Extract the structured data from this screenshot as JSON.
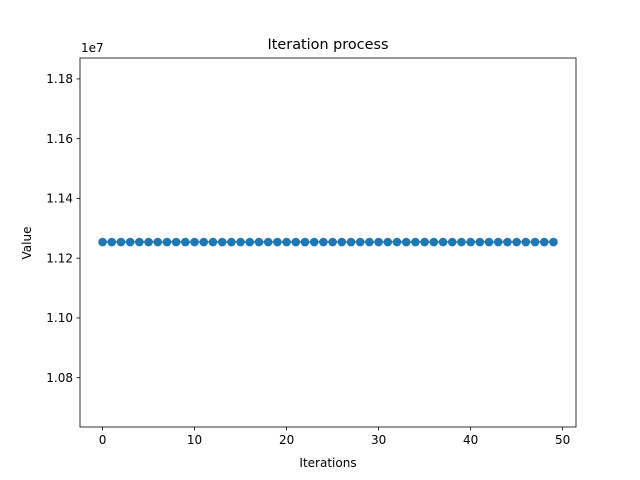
{
  "chart_data": {
    "type": "line",
    "title": "Iteration process",
    "xlabel": "Iterations",
    "ylabel": "Value",
    "y_offset_label": "1e7",
    "y_multiplier": 10000000,
    "xlim": [
      -2.45,
      51.45
    ],
    "ylim": [
      1.0635,
      1.187
    ],
    "x_ticks": [
      0,
      10,
      20,
      30,
      40,
      50
    ],
    "x_tick_labels": [
      "0",
      "10",
      "20",
      "30",
      "40",
      "50"
    ],
    "y_ticks": [
      1.08,
      1.1,
      1.12,
      1.14,
      1.16,
      1.18
    ],
    "y_tick_labels": [
      "1.08",
      "1.10",
      "1.12",
      "1.14",
      "1.16",
      "1.18"
    ],
    "grid": false,
    "series": [
      {
        "color": "#1f77b4",
        "marker": "circle",
        "x": [
          0,
          1,
          2,
          3,
          4,
          5,
          6,
          7,
          8,
          9,
          10,
          11,
          12,
          13,
          14,
          15,
          16,
          17,
          18,
          19,
          20,
          21,
          22,
          23,
          24,
          25,
          26,
          27,
          28,
          29,
          30,
          31,
          32,
          33,
          34,
          35,
          36,
          37,
          38,
          39,
          40,
          41,
          42,
          43,
          44,
          45,
          46,
          47,
          48,
          49
        ],
        "values": [
          1.1254,
          1.1254,
          1.1254,
          1.1254,
          1.1254,
          1.1254,
          1.1254,
          1.1254,
          1.1254,
          1.1254,
          1.1254,
          1.1254,
          1.1254,
          1.1254,
          1.1254,
          1.1254,
          1.1254,
          1.1254,
          1.1254,
          1.1254,
          1.1254,
          1.1254,
          1.1254,
          1.1254,
          1.1254,
          1.1254,
          1.1254,
          1.1254,
          1.1254,
          1.1254,
          1.1254,
          1.1254,
          1.1254,
          1.1254,
          1.1254,
          1.1254,
          1.1254,
          1.1254,
          1.1254,
          1.1254,
          1.1254,
          1.1254,
          1.1254,
          1.1254,
          1.1254,
          1.1254,
          1.1254,
          1.1254,
          1.1254,
          1.1254
        ]
      }
    ]
  }
}
